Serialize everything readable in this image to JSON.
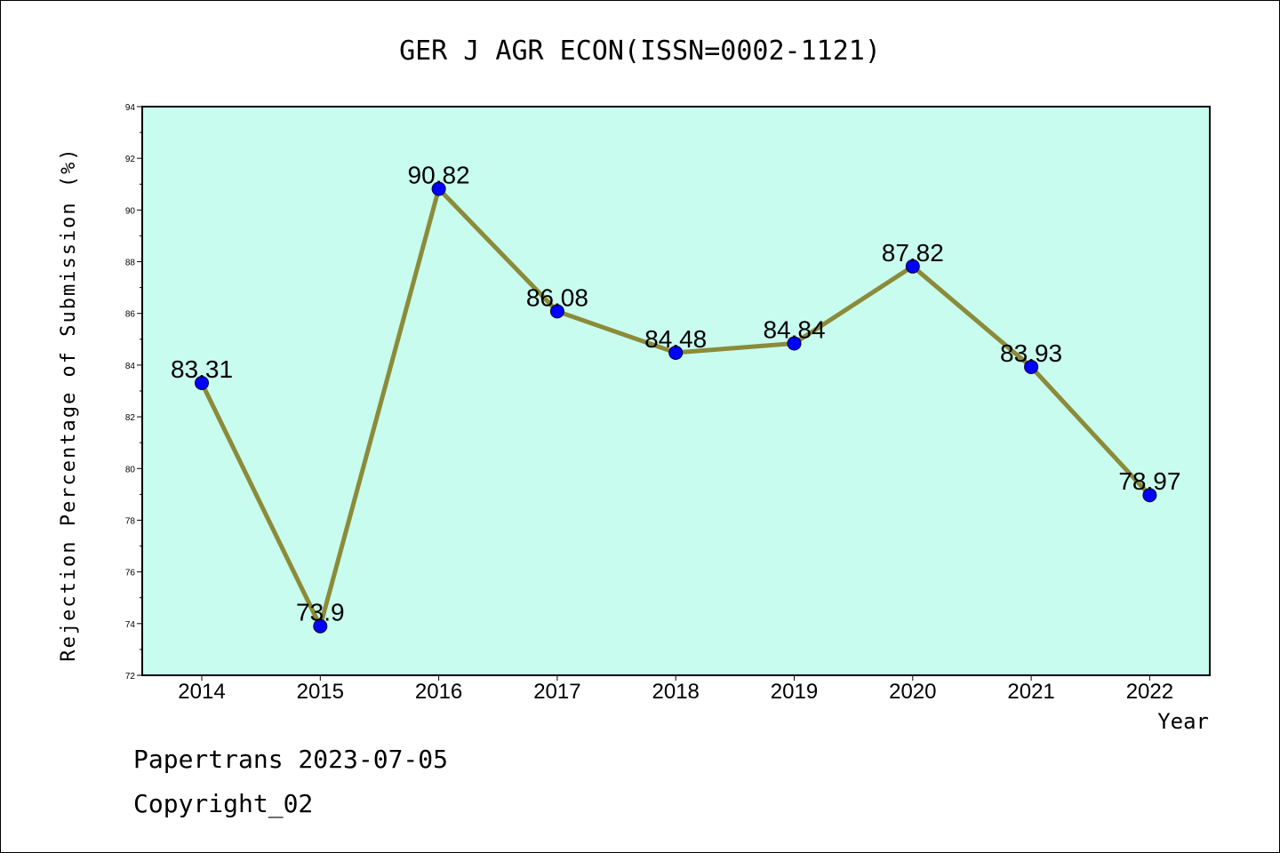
{
  "chart_data": {
    "type": "line",
    "title": "GER J AGR ECON(ISSN=0002-1121)",
    "xlabel": "Year",
    "ylabel": "Rejection Percentage of Submission (%)",
    "categories": [
      "2014",
      "2015",
      "2016",
      "2017",
      "2018",
      "2019",
      "2020",
      "2021",
      "2022"
    ],
    "values": [
      83.31,
      73.9,
      90.82,
      86.08,
      84.48,
      84.84,
      87.82,
      83.93,
      78.97
    ],
    "data_labels": [
      "83.31",
      "73.9",
      "90.82",
      "86.08",
      "84.48",
      "84.84",
      "87.82",
      "83.93",
      "78.97"
    ],
    "ylim": [
      72,
      94
    ],
    "yticks": [
      72,
      74,
      76,
      78,
      80,
      82,
      84,
      86,
      88,
      90,
      92,
      94
    ],
    "grid": false,
    "colors": {
      "plot_background": "#c8fcee",
      "line": "#8b8b3a",
      "marker": "#0000ff"
    }
  },
  "footer": {
    "line1": "Papertrans 2023-07-05",
    "line2": "Copyright_02"
  }
}
